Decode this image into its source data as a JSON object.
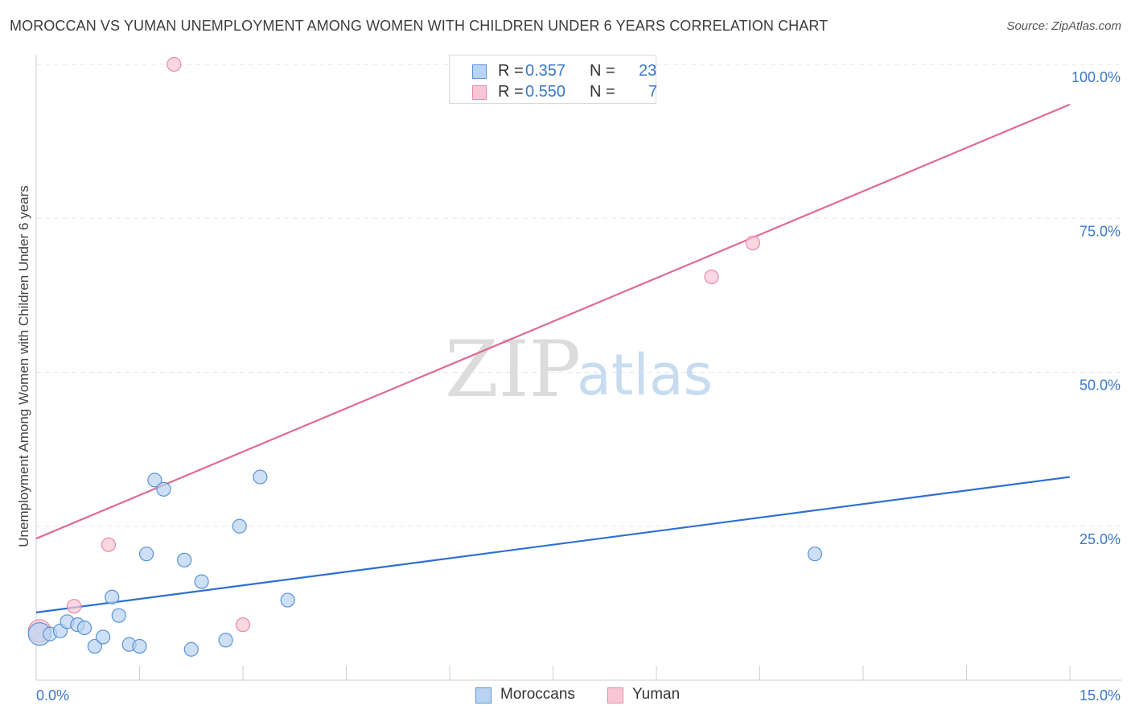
{
  "title": "MOROCCAN VS YUMAN UNEMPLOYMENT AMONG WOMEN WITH CHILDREN UNDER 6 YEARS CORRELATION CHART",
  "source": "Source: ZipAtlas.com",
  "watermark": {
    "zip": "ZIP",
    "atlas": "atlas"
  },
  "legend_top": [
    {
      "r_label": "R =",
      "r_value": "0.357",
      "n_label": "N =",
      "n_value": "23"
    },
    {
      "r_label": "R =",
      "r_value": "0.550",
      "n_label": "N =",
      "n_value": "7"
    }
  ],
  "legend_bottom": [
    "Moroccans",
    "Yuman"
  ],
  "colors": {
    "blue_fill": "#b9d3f2",
    "blue_stroke": "#5b93d6",
    "blue_line": "#2e6fd0",
    "pink_fill": "#f9c6d6",
    "pink_stroke": "#e78aa7",
    "pink_line": "#e06a92",
    "tick_text": "#3a78c9",
    "grid": "#e6e6e6"
  },
  "chart_data": {
    "type": "scatter",
    "title": "MOROCCAN VS YUMAN UNEMPLOYMENT AMONG WOMEN WITH CHILDREN UNDER 6 YEARS CORRELATION CHART",
    "xlabel": "",
    "ylabel": "Unemployment Among Women with Children Under 6 years",
    "xlim": [
      0,
      15
    ],
    "ylim": [
      0,
      100
    ],
    "x_tick_labels": [
      "0.0%",
      "15.0%"
    ],
    "y_ticks": [
      25,
      50,
      75,
      100
    ],
    "y_tick_labels": [
      "25.0%",
      "50.0%",
      "75.0%",
      "100.0%"
    ],
    "series": [
      {
        "name": "Moroccans",
        "r": 0.357,
        "n": 23,
        "points": [
          [
            0.05,
            7.5
          ],
          [
            0.2,
            7.5
          ],
          [
            0.35,
            8.0
          ],
          [
            0.45,
            9.5
          ],
          [
            0.6,
            9.0
          ],
          [
            0.7,
            8.5
          ],
          [
            0.85,
            5.5
          ],
          [
            0.97,
            7.0
          ],
          [
            1.1,
            13.5
          ],
          [
            1.2,
            10.5
          ],
          [
            1.35,
            5.8
          ],
          [
            1.5,
            5.5
          ],
          [
            1.6,
            20.5
          ],
          [
            1.72,
            32.5
          ],
          [
            1.85,
            31.0
          ],
          [
            2.15,
            19.5
          ],
          [
            2.25,
            5.0
          ],
          [
            2.4,
            16.0
          ],
          [
            2.75,
            6.5
          ],
          [
            2.95,
            25.0
          ],
          [
            3.25,
            33.0
          ],
          [
            3.65,
            13.0
          ],
          [
            11.3,
            20.5
          ]
        ],
        "trend": {
          "x": [
            0,
            15
          ],
          "y": [
            11.0,
            33.0
          ]
        }
      },
      {
        "name": "Yuman",
        "r": 0.55,
        "n": 7,
        "points": [
          [
            0.05,
            8.0
          ],
          [
            0.55,
            12.0
          ],
          [
            1.05,
            22.0
          ],
          [
            2.0,
            100.0
          ],
          [
            3.0,
            9.0
          ],
          [
            9.8,
            65.5
          ],
          [
            10.4,
            71.0
          ]
        ],
        "trend": {
          "x": [
            0,
            15
          ],
          "y": [
            23.0,
            93.5
          ]
        }
      }
    ]
  }
}
